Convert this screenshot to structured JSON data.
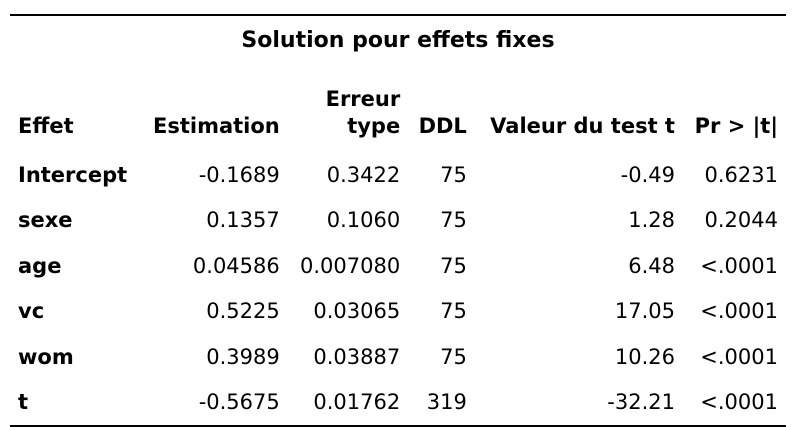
{
  "table": {
    "title": "Solution pour effets fixes",
    "headers": {
      "effect": "Effet",
      "estimate": "Estimation",
      "stderr_line1": "Erreur",
      "stderr_line2": "type",
      "df": "DDL",
      "tvalue": "Valeur du test t",
      "pvalue": "Pr > |t|"
    },
    "rows": [
      {
        "effect": "Intercept",
        "estimate": "-0.1689",
        "stderr": "0.3422",
        "df": "75",
        "tvalue": "-0.49",
        "pvalue": "0.6231"
      },
      {
        "effect": "sexe",
        "estimate": "0.1357",
        "stderr": "0.1060",
        "df": "75",
        "tvalue": "1.28",
        "pvalue": "0.2044"
      },
      {
        "effect": "age",
        "estimate": "0.04586",
        "stderr": "0.007080",
        "df": "75",
        "tvalue": "6.48",
        "pvalue": "<.0001"
      },
      {
        "effect": "vc",
        "estimate": "0.5225",
        "stderr": "0.03065",
        "df": "75",
        "tvalue": "17.05",
        "pvalue": "<.0001"
      },
      {
        "effect": "wom",
        "estimate": "0.3989",
        "stderr": "0.03887",
        "df": "75",
        "tvalue": "10.26",
        "pvalue": "<.0001"
      },
      {
        "effect": "t",
        "estimate": "-0.5675",
        "stderr": "0.01762",
        "df": "319",
        "tvalue": "-32.21",
        "pvalue": "<.0001"
      }
    ]
  }
}
